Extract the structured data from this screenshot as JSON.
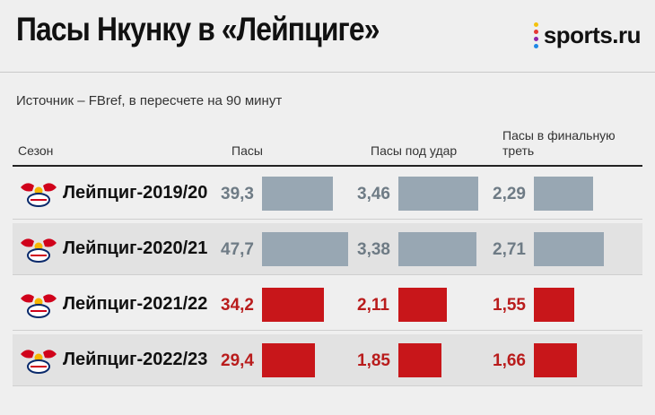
{
  "header": {
    "title": "Пасы Нкунку в «Лейпциге»",
    "brand": "sports.ru",
    "source_note": "Источник – FBref, в пересчете на 90 минут"
  },
  "brand_dot_colors": [
    "#f4c20d",
    "#e53935",
    "#8e24aa",
    "#1e88e5"
  ],
  "columns": {
    "season": "Сезон",
    "passes": "Пасы",
    "shot_passes": "Пасы под удар",
    "final_third_line1": "Пасы в финальную",
    "final_third_line2": "треть"
  },
  "colors": {
    "old_bar": "#98a7b3",
    "new_bar": "#c8161a",
    "old_text": "#6e7b85",
    "new_text": "#b91c1c"
  },
  "chart_data": {
    "type": "bar",
    "categories": [
      "Лейпциг-2019/20",
      "Лейпциг-2020/21",
      "Лейпциг-2021/22",
      "Лейпциг-2022/23"
    ],
    "series": [
      {
        "name": "Пасы",
        "values": [
          39.3,
          47.7,
          34.2,
          29.4
        ],
        "labels": [
          "39,3",
          "47,7",
          "34,2",
          "29,4"
        ],
        "max": 47.7
      },
      {
        "name": "Пасы под удар",
        "values": [
          3.46,
          3.38,
          2.11,
          1.85
        ],
        "labels": [
          "3,46",
          "3,38",
          "2,11",
          "1,85"
        ],
        "max": 3.46
      },
      {
        "name": "Пасы в финальную треть",
        "values": [
          2.29,
          2.71,
          1.55,
          1.66
        ],
        "labels": [
          "2,29",
          "2,71",
          "1,55",
          "1,66"
        ],
        "max": 2.71
      }
    ],
    "highlight_rows": [
      false,
      false,
      true,
      true
    ]
  }
}
